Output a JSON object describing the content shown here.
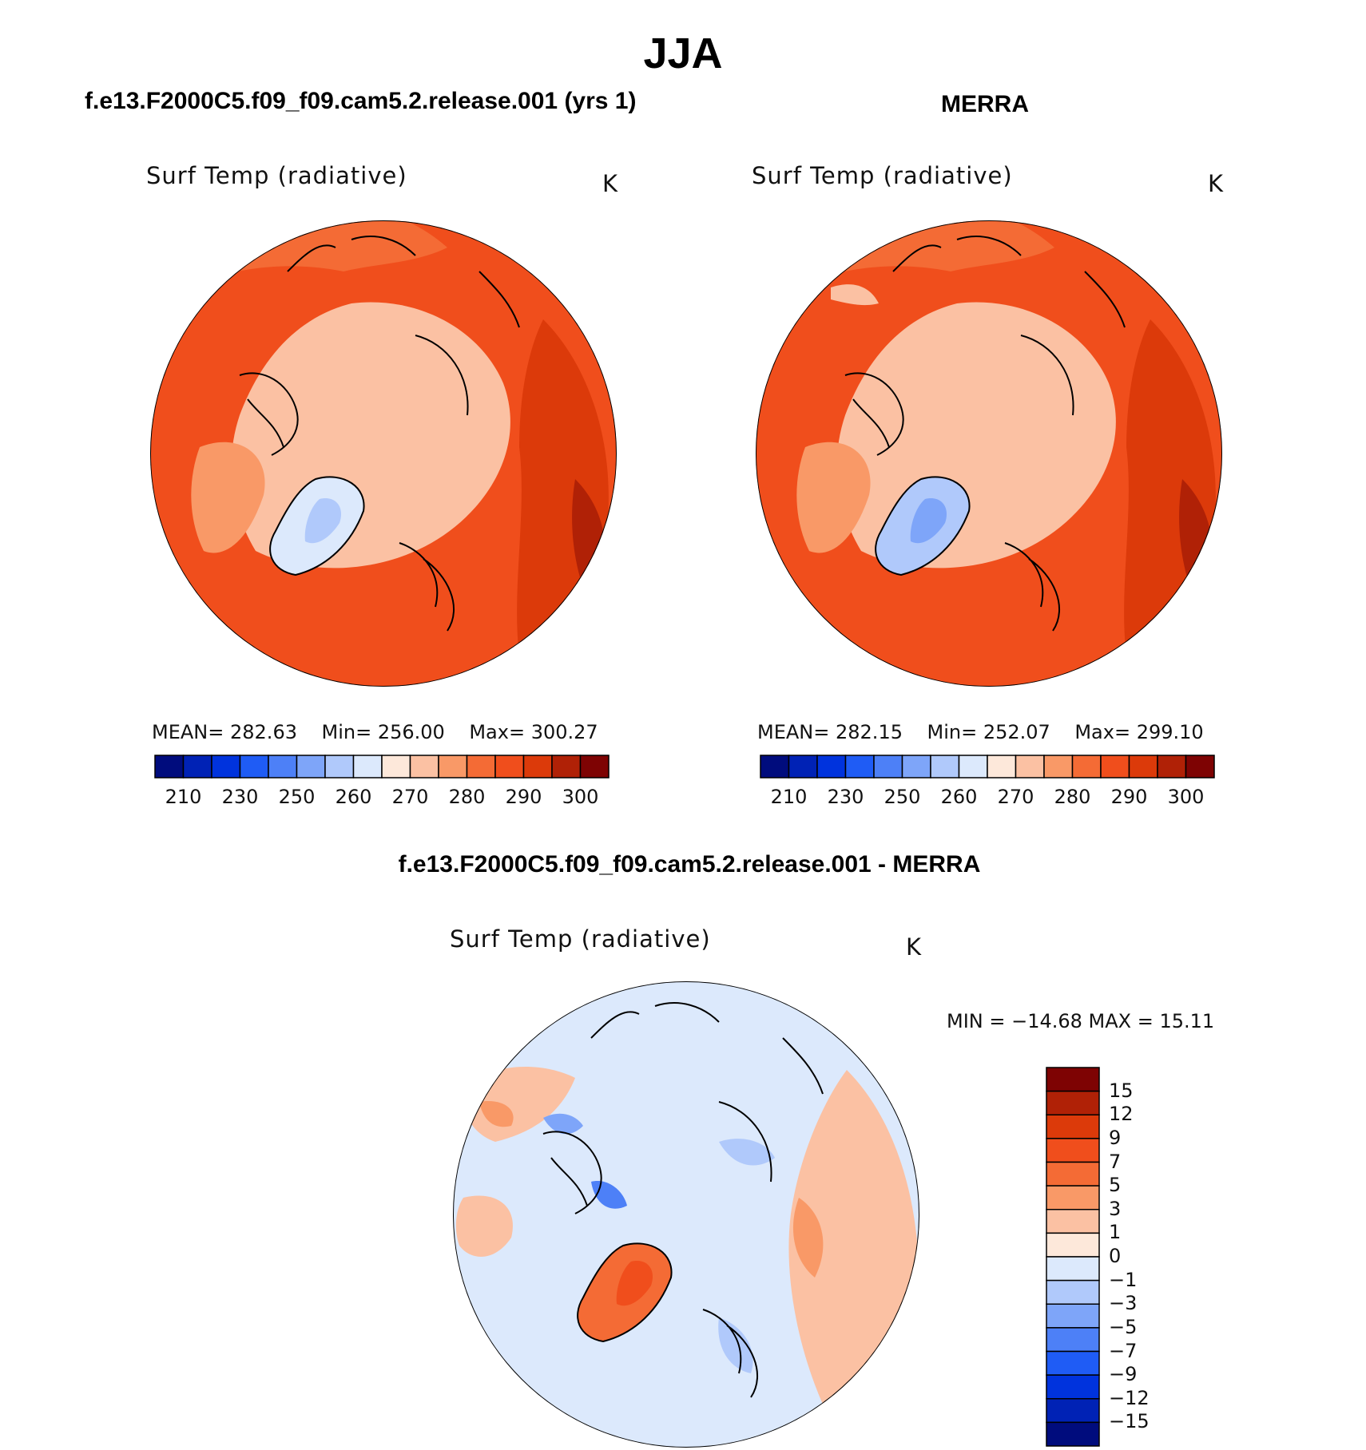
{
  "title": "JJA",
  "colors": {
    "abs_scale": [
      "#000c7d",
      "#0022b5",
      "#0033dd",
      "#1f5cf5",
      "#4d80f7",
      "#7ea5f9",
      "#b0c9fb",
      "#dce9fc",
      "#fde8da",
      "#fbc1a3",
      "#f99967",
      "#f46b35",
      "#f04e1c",
      "#dc3a0a",
      "#b02106",
      "#7e0303"
    ],
    "diff_scale": [
      "#7e0303",
      "#b02106",
      "#dc3a0a",
      "#f04e1c",
      "#f46b35",
      "#f99967",
      "#fbc1a3",
      "#fde8da",
      "#dce9fc",
      "#b0c9fb",
      "#7ea5f9",
      "#4d80f7",
      "#1f5cf5",
      "#0033dd",
      "#0022b5",
      "#000c7d"
    ],
    "land_outline": "#000000"
  },
  "panels": {
    "model": {
      "title": "f.e13.F2000C5.f09_f09.cam5.2.release.001 (yrs 1)",
      "variable": "Surf Temp (radiative)",
      "units": "K",
      "mean_label": "MEAN=",
      "mean": "282.63",
      "min_label": "Min=",
      "min": "256.00",
      "max_label": "Max=",
      "max": "300.27",
      "colorbar_ticks": [
        "210",
        "230",
        "250",
        "260",
        "270",
        "280",
        "290",
        "300"
      ]
    },
    "obs": {
      "title": "MERRA",
      "variable": "Surf Temp (radiative)",
      "units": "K",
      "mean_label": "MEAN=",
      "mean": "282.15",
      "min_label": "Min=",
      "min": "252.07",
      "max_label": "Max=",
      "max": "299.10",
      "colorbar_ticks": [
        "210",
        "230",
        "250",
        "260",
        "270",
        "280",
        "290",
        "300"
      ]
    },
    "diff": {
      "title": "f.e13.F2000C5.f09_f09.cam5.2.release.001 - MERRA",
      "variable": "Surf Temp (radiative)",
      "units": "K",
      "minmax_text": "MIN = −14.68 MAX =   15.11",
      "colorbar_ticks": [
        "15",
        "12",
        "9",
        "7",
        "5",
        "3",
        "1",
        "0",
        "−1",
        "−3",
        "−5",
        "−7",
        "−9",
        "−12",
        "−15"
      ]
    }
  },
  "chart_data": [
    {
      "type": "heatmap",
      "projection": "north polar stereographic",
      "season": "JJA",
      "source": "f.e13.F2000C5.f09_f09.cam5.2.release.001 (yrs 1)",
      "variable": "Surf Temp (radiative)",
      "units": "K",
      "mean": 282.63,
      "min": 256.0,
      "max": 300.27,
      "colorbar_levels": [
        210,
        230,
        250,
        260,
        270,
        280,
        290,
        300
      ]
    },
    {
      "type": "heatmap",
      "projection": "north polar stereographic",
      "season": "JJA",
      "source": "MERRA",
      "variable": "Surf Temp (radiative)",
      "units": "K",
      "mean": 282.15,
      "min": 252.07,
      "max": 299.1,
      "colorbar_levels": [
        210,
        230,
        250,
        260,
        270,
        280,
        290,
        300
      ]
    },
    {
      "type": "heatmap",
      "projection": "north polar stereographic",
      "season": "JJA",
      "source": "f.e13.F2000C5.f09_f09.cam5.2.release.001 - MERRA",
      "variable": "Surf Temp (radiative)",
      "units": "K",
      "min": -14.68,
      "max": 15.11,
      "colorbar_levels": [
        15,
        12,
        9,
        7,
        5,
        3,
        1,
        0,
        -1,
        -3,
        -5,
        -7,
        -9,
        -12,
        -15
      ]
    }
  ]
}
